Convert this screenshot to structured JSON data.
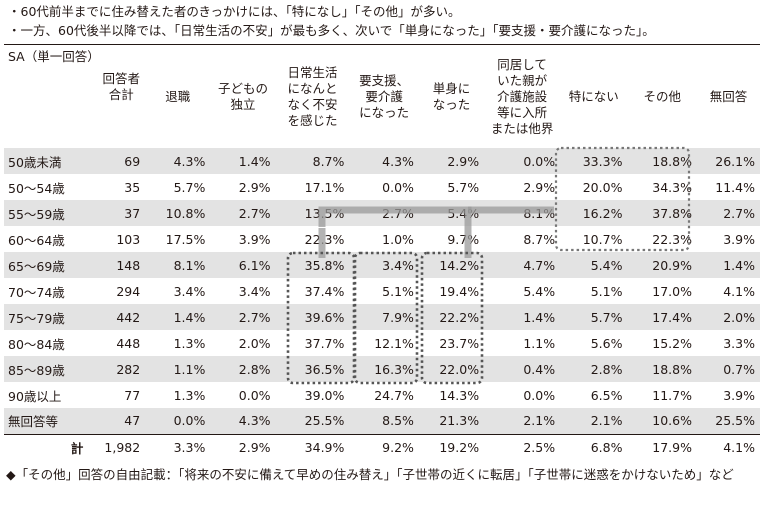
{
  "notes": [
    "・60代前半までに住み替えた者のきっかけには、「特になし」「その他」が多い。",
    "・一方、60代後半以降では、「日常生活の不安」が最も多く、次いで「単身になった」「要支援・要介護になった」。"
  ],
  "table": {
    "corner": "SA（単一回答）",
    "columns": [
      "回答者\n合計",
      "退職",
      "子どもの\n独立",
      "日常生活\nになんと\nなく不安\nを感じた",
      "要支援、\n要介護\nになった",
      "単身に\nなった",
      "同居して\nいた親が\n介護施設\n等に入所\nまたは他界",
      "特にない",
      "その他",
      "無回答"
    ],
    "rows": [
      {
        "label": "50歳未満",
        "cells": [
          "69",
          "4.3%",
          "1.4%",
          "8.7%",
          "4.3%",
          "2.9%",
          "0.0%",
          "33.3%",
          "18.8%",
          "26.1%"
        ]
      },
      {
        "label": "50～54歳",
        "cells": [
          "35",
          "5.7%",
          "2.9%",
          "17.1%",
          "0.0%",
          "5.7%",
          "2.9%",
          "20.0%",
          "34.3%",
          "11.4%"
        ]
      },
      {
        "label": "55～59歳",
        "cells": [
          "37",
          "10.8%",
          "2.7%",
          "13.5%",
          "2.7%",
          "5.4%",
          "8.1%",
          "16.2%",
          "37.8%",
          "2.7%"
        ]
      },
      {
        "label": "60～64歳",
        "cells": [
          "103",
          "17.5%",
          "3.9%",
          "22.3%",
          "1.0%",
          "9.7%",
          "8.7%",
          "10.7%",
          "22.3%",
          "3.9%"
        ]
      },
      {
        "label": "65～69歳",
        "cells": [
          "148",
          "8.1%",
          "6.1%",
          "35.8%",
          "3.4%",
          "14.2%",
          "4.7%",
          "5.4%",
          "20.9%",
          "1.4%"
        ]
      },
      {
        "label": "70～74歳",
        "cells": [
          "294",
          "3.4%",
          "3.4%",
          "37.4%",
          "5.1%",
          "19.4%",
          "5.4%",
          "5.1%",
          "17.0%",
          "4.1%"
        ]
      },
      {
        "label": "75～79歳",
        "cells": [
          "442",
          "1.4%",
          "2.7%",
          "39.6%",
          "7.9%",
          "22.2%",
          "1.4%",
          "5.7%",
          "17.4%",
          "2.0%"
        ]
      },
      {
        "label": "80～84歳",
        "cells": [
          "448",
          "1.3%",
          "2.0%",
          "37.7%",
          "12.1%",
          "23.7%",
          "1.1%",
          "5.6%",
          "15.2%",
          "3.3%"
        ]
      },
      {
        "label": "85～89歳",
        "cells": [
          "282",
          "1.1%",
          "2.8%",
          "36.5%",
          "16.3%",
          "22.0%",
          "0.4%",
          "2.8%",
          "18.8%",
          "0.7%"
        ]
      },
      {
        "label": "90歳以上",
        "cells": [
          "77",
          "1.3%",
          "0.0%",
          "39.0%",
          "24.7%",
          "14.3%",
          "0.0%",
          "6.5%",
          "11.7%",
          "3.9%"
        ]
      },
      {
        "label": "無回答等",
        "cells": [
          "47",
          "0.0%",
          "4.3%",
          "25.5%",
          "8.5%",
          "21.3%",
          "2.1%",
          "2.1%",
          "10.6%",
          "25.5%"
        ]
      }
    ],
    "total": {
      "label": "計",
      "cells": [
        "1,982",
        "3.3%",
        "2.9%",
        "34.9%",
        "9.2%",
        "19.2%",
        "2.5%",
        "6.8%",
        "17.9%",
        "4.1%"
      ]
    }
  },
  "footnote": "◆「その他」回答の自由記載：「将来の不安に備えて早めの住み替え」「子世帯の近くに転居」「子世帯に迷惑をかけないため」など",
  "colors": {
    "shade": "#e3e3e3",
    "highlight": "#666666",
    "connector": "#999999",
    "text": "#231815"
  }
}
